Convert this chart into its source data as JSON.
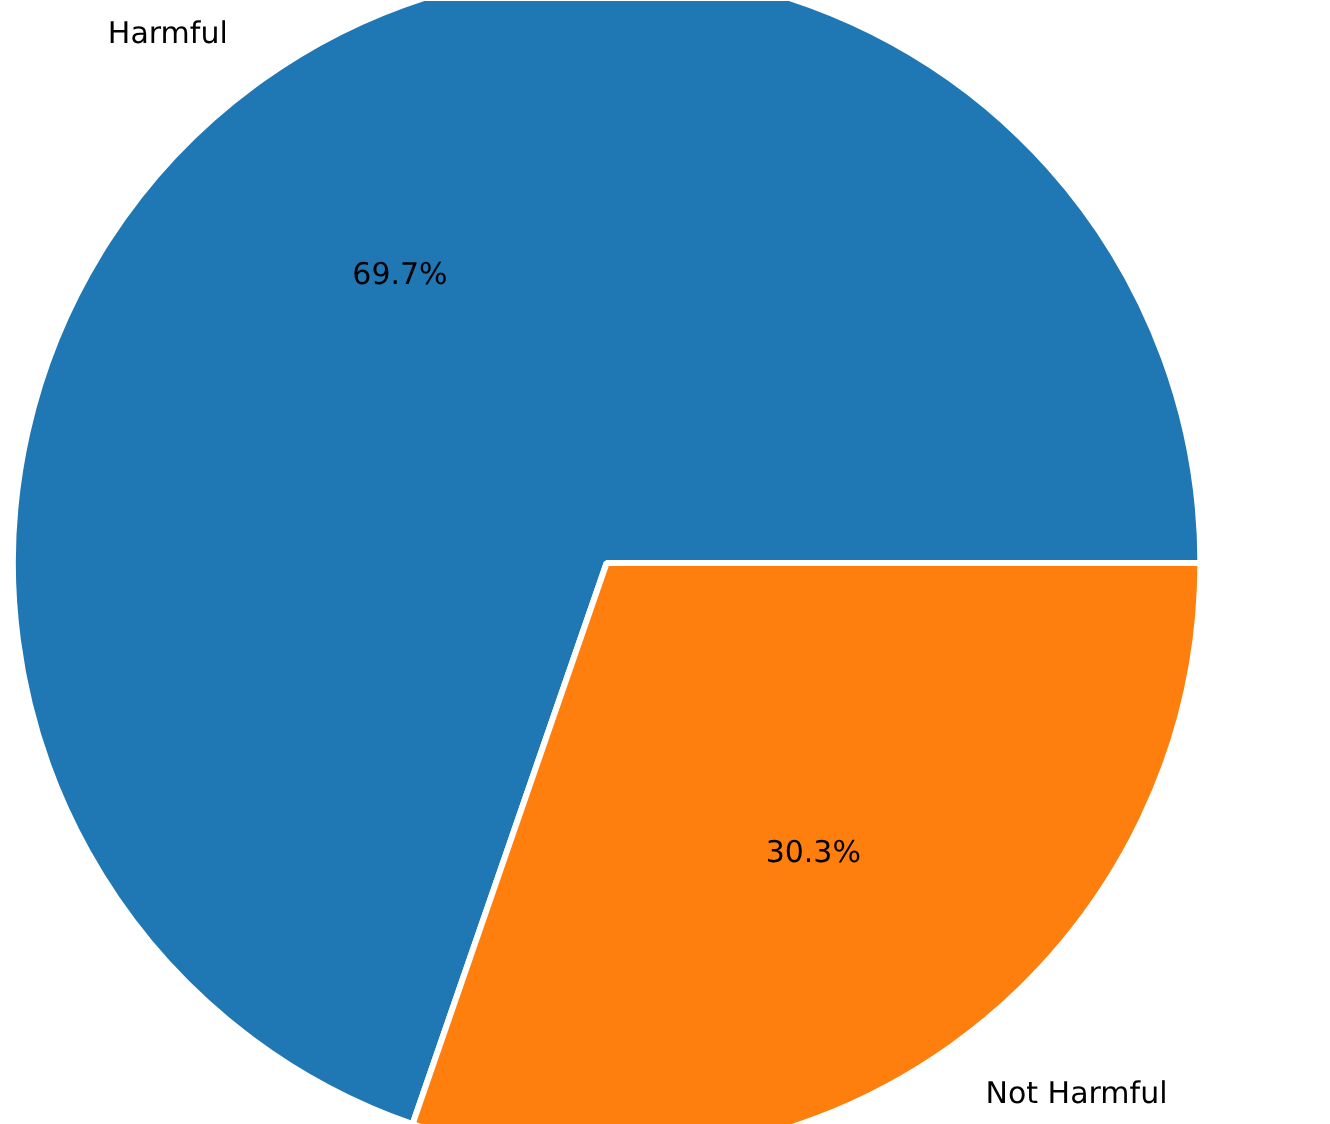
{
  "chart_data": {
    "type": "pie",
    "categories": [
      "Harmful",
      "Not Harmful"
    ],
    "values": [
      69.7,
      30.3
    ],
    "colors": [
      "#1f77b4",
      "#ff7f0e"
    ],
    "value_labels": [
      "69.7%",
      "30.3%"
    ],
    "legend": false
  }
}
